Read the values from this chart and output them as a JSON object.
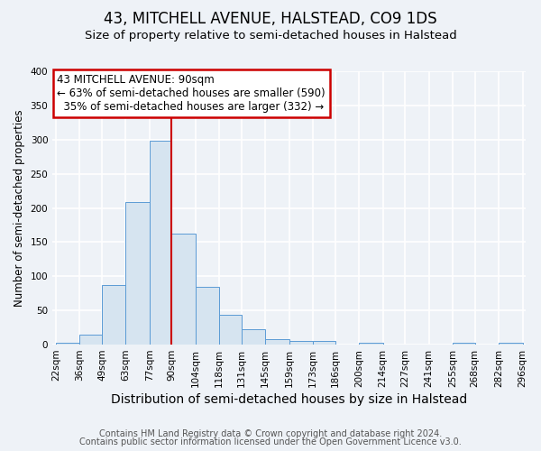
{
  "title": "43, MITCHELL AVENUE, HALSTEAD, CO9 1DS",
  "subtitle": "Size of property relative to semi-detached houses in Halstead",
  "xlabel": "Distribution of semi-detached houses by size in Halstead",
  "ylabel": "Number of semi-detached properties",
  "bin_labels": [
    "22sqm",
    "36sqm",
    "49sqm",
    "63sqm",
    "77sqm",
    "90sqm",
    "104sqm",
    "118sqm",
    "131sqm",
    "145sqm",
    "159sqm",
    "173sqm",
    "186sqm",
    "200sqm",
    "214sqm",
    "227sqm",
    "241sqm",
    "255sqm",
    "268sqm",
    "282sqm",
    "296sqm"
  ],
  "bin_edges": [
    22,
    36,
    49,
    63,
    77,
    90,
    104,
    118,
    131,
    145,
    159,
    173,
    186,
    200,
    214,
    227,
    241,
    255,
    268,
    282,
    296
  ],
  "bar_heights": [
    3,
    15,
    87,
    208,
    299,
    163,
    85,
    44,
    22,
    8,
    5,
    5,
    0,
    3,
    0,
    0,
    0,
    3,
    0,
    3
  ],
  "bar_color": "#d6e4f0",
  "bar_edgecolor": "#5b9bd5",
  "property_value": 90,
  "vline_color": "#cc0000",
  "annotation_line1": "43 MITCHELL AVENUE: 90sqm",
  "annotation_line2": "← 63% of semi-detached houses are smaller (590)",
  "annotation_line3": "  35% of semi-detached houses are larger (332) →",
  "annotation_box_edgecolor": "#cc0000",
  "ylim": [
    0,
    400
  ],
  "yticks": [
    0,
    50,
    100,
    150,
    200,
    250,
    300,
    350,
    400
  ],
  "footer1": "Contains HM Land Registry data © Crown copyright and database right 2024.",
  "footer2": "Contains public sector information licensed under the Open Government Licence v3.0.",
  "background_color": "#eef2f7",
  "plot_background_color": "#eef2f7",
  "grid_color": "#ffffff",
  "title_fontsize": 12,
  "subtitle_fontsize": 9.5,
  "xlabel_fontsize": 10,
  "ylabel_fontsize": 8.5,
  "tick_fontsize": 7.5,
  "annotation_fontsize": 8.5,
  "footer_fontsize": 7
}
